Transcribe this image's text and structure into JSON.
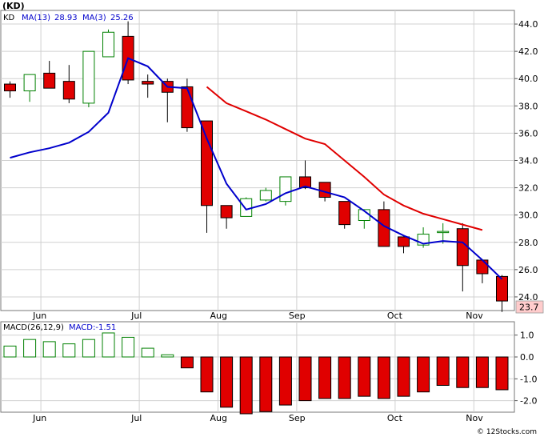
{
  "ticker_label": "(KD)",
  "watermark": "© 12Stocks.com",
  "price_panel": {
    "legend": {
      "symbol": "KD",
      "ma13_label": "MA(13)",
      "ma13_value": "28.93",
      "ma3_label": "MA(3)",
      "ma3_value": "25.26"
    },
    "last_price_label": "23.7"
  },
  "macd_panel": {
    "legend": {
      "label": "MACD(26,12,9)",
      "value_label": "MACD:-1.51"
    }
  },
  "colors": {
    "up": "#008000",
    "down": "#e00000",
    "ma13": "#e00000",
    "ma3": "#0000cc",
    "grid": "#d0d0d0",
    "label_box": "#ffcccc"
  },
  "chart_data": {
    "type": "candlestick",
    "x_labels": [
      "Jun",
      "Jul",
      "Aug",
      "Sep",
      "Oct",
      "Nov"
    ],
    "x_label_weeks": [
      1,
      6,
      10,
      14,
      19,
      23
    ],
    "weeks": 26,
    "price": {
      "ylim": [
        23,
        45
      ],
      "yticks": [
        24.0,
        26.0,
        28.0,
        30.0,
        32.0,
        34.0,
        36.0,
        38.0,
        40.0,
        42.0,
        44.0
      ],
      "candles": [
        {
          "o": 39.6,
          "h": 39.8,
          "l": 38.6,
          "c": 39.1
        },
        {
          "o": 39.1,
          "h": 40.3,
          "l": 38.3,
          "c": 40.3
        },
        {
          "o": 40.4,
          "h": 41.3,
          "l": 39.3,
          "c": 39.3
        },
        {
          "o": 39.8,
          "h": 41.0,
          "l": 38.2,
          "c": 38.5
        },
        {
          "o": 38.2,
          "h": 42.0,
          "l": 37.9,
          "c": 42.0
        },
        {
          "o": 41.6,
          "h": 43.6,
          "l": 41.6,
          "c": 43.4
        },
        {
          "o": 43.1,
          "h": 44.2,
          "l": 39.6,
          "c": 39.9
        },
        {
          "o": 39.8,
          "h": 40.3,
          "l": 38.6,
          "c": 39.6
        },
        {
          "o": 39.8,
          "h": 40.0,
          "l": 36.8,
          "c": 39.0
        },
        {
          "o": 39.4,
          "h": 40.0,
          "l": 36.1,
          "c": 36.4
        },
        {
          "o": 36.9,
          "h": 36.9,
          "l": 28.7,
          "c": 30.7
        },
        {
          "o": 30.7,
          "h": 30.7,
          "l": 29.0,
          "c": 29.8
        },
        {
          "o": 29.9,
          "h": 31.3,
          "l": 29.9,
          "c": 31.2
        },
        {
          "o": 31.1,
          "h": 32.0,
          "l": 31.0,
          "c": 31.8
        },
        {
          "o": 31.0,
          "h": 32.8,
          "l": 30.7,
          "c": 32.8
        },
        {
          "o": 32.8,
          "h": 34.0,
          "l": 31.9,
          "c": 32.0
        },
        {
          "o": 32.4,
          "h": 32.4,
          "l": 31.0,
          "c": 31.3
        },
        {
          "o": 31.0,
          "h": 31.0,
          "l": 29.0,
          "c": 29.3
        },
        {
          "o": 29.6,
          "h": 30.3,
          "l": 29.0,
          "c": 30.4
        },
        {
          "o": 30.4,
          "h": 31.0,
          "l": 27.7,
          "c": 27.7
        },
        {
          "o": 28.4,
          "h": 28.4,
          "l": 27.2,
          "c": 27.7
        },
        {
          "o": 27.8,
          "h": 29.1,
          "l": 27.6,
          "c": 28.6
        },
        {
          "o": 28.8,
          "h": 29.4,
          "l": 27.9,
          "c": 28.8
        },
        {
          "o": 29.0,
          "h": 29.4,
          "l": 24.4,
          "c": 26.3
        },
        {
          "o": 26.7,
          "h": 26.7,
          "l": 25.0,
          "c": 25.7
        },
        {
          "o": 25.5,
          "h": 25.6,
          "l": 22.9,
          "c": 23.7
        }
      ],
      "ma13": [
        {
          "w": 10,
          "v": 39.4
        },
        {
          "w": 11,
          "v": 38.2
        },
        {
          "w": 12,
          "v": 37.6
        },
        {
          "w": 13,
          "v": 37.0
        },
        {
          "w": 14,
          "v": 36.3
        },
        {
          "w": 15,
          "v": 35.6
        },
        {
          "w": 16,
          "v": 35.2
        },
        {
          "w": 17,
          "v": 34.0
        },
        {
          "w": 18,
          "v": 32.8
        },
        {
          "w": 19,
          "v": 31.5
        },
        {
          "w": 20,
          "v": 30.7
        },
        {
          "w": 21,
          "v": 30.1
        },
        {
          "w": 22,
          "v": 29.7
        },
        {
          "w": 23,
          "v": 29.3
        },
        {
          "w": 24,
          "v": 28.9
        }
      ],
      "ma3": [
        {
          "w": 0,
          "v": 34.2
        },
        {
          "w": 1,
          "v": 34.6
        },
        {
          "w": 2,
          "v": 34.9
        },
        {
          "w": 3,
          "v": 35.3
        },
        {
          "w": 4,
          "v": 36.1
        },
        {
          "w": 5,
          "v": 37.5
        },
        {
          "w": 6,
          "v": 41.5
        },
        {
          "w": 7,
          "v": 40.9
        },
        {
          "w": 8,
          "v": 39.4
        },
        {
          "w": 9,
          "v": 39.3
        },
        {
          "w": 10,
          "v": 35.6
        },
        {
          "w": 11,
          "v": 32.3
        },
        {
          "w": 12,
          "v": 30.4
        },
        {
          "w": 13,
          "v": 30.8
        },
        {
          "w": 14,
          "v": 31.6
        },
        {
          "w": 15,
          "v": 32.1
        },
        {
          "w": 16,
          "v": 31.7
        },
        {
          "w": 17,
          "v": 31.3
        },
        {
          "w": 18,
          "v": 30.3
        },
        {
          "w": 19,
          "v": 29.2
        },
        {
          "w": 20,
          "v": 28.5
        },
        {
          "w": 21,
          "v": 27.9
        },
        {
          "w": 22,
          "v": 28.1
        },
        {
          "w": 23,
          "v": 28.0
        },
        {
          "w": 24,
          "v": 26.7
        },
        {
          "w": 25,
          "v": 25.3
        }
      ]
    },
    "macd": {
      "ylim": [
        -2.6,
        1.5
      ],
      "yticks": [
        1.0,
        0.0,
        -1.0,
        -2.0
      ],
      "ytick_labels": [
        "1.0",
        "0.0",
        "-1.0",
        "-2.0"
      ],
      "histogram": [
        0.5,
        0.8,
        0.7,
        0.6,
        0.8,
        1.1,
        0.9,
        0.4,
        0.1,
        -0.5,
        -1.6,
        -2.3,
        -2.6,
        -2.5,
        -2.2,
        -2.0,
        -1.9,
        -1.9,
        -1.8,
        -1.9,
        -1.8,
        -1.6,
        -1.3,
        -1.4,
        -1.4,
        -1.5
      ]
    }
  }
}
